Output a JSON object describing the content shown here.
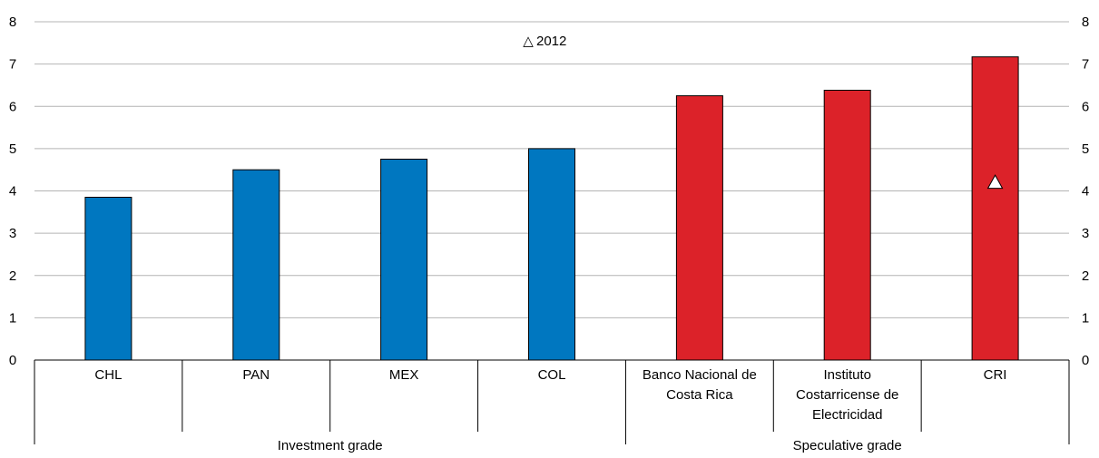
{
  "chart_data": {
    "type": "bar",
    "categories": [
      [
        "CHL"
      ],
      [
        "PAN"
      ],
      [
        "MEX"
      ],
      [
        "COL"
      ],
      [
        "Banco Nacional de",
        "Costa Rica"
      ],
      [
        "Instituto",
        "Costarricense de",
        "Electricidad"
      ],
      [
        "CRI"
      ]
    ],
    "values": [
      3.85,
      4.5,
      4.75,
      5.0,
      6.25,
      6.38,
      7.17
    ],
    "bar_colors": [
      "#0077c0",
      "#0077c0",
      "#0077c0",
      "#0077c0",
      "#dc2229",
      "#dc2229",
      "#dc2229"
    ],
    "groups": [
      {
        "label": "Investment grade",
        "from": 0,
        "to": 3
      },
      {
        "label": "Speculative grade",
        "from": 4,
        "to": 6
      }
    ],
    "markers": [
      {
        "series": "2012",
        "category_index": 6,
        "value": 4.2,
        "symbol": "triangle"
      }
    ],
    "legend": {
      "symbol": "△",
      "label": "2012",
      "placement": "top-center"
    },
    "ylim": [
      0,
      8
    ],
    "yticks": [
      0,
      1,
      2,
      3,
      4,
      5,
      6,
      7,
      8
    ],
    "grid": true,
    "title": "",
    "xlabel": "",
    "ylabel": ""
  }
}
